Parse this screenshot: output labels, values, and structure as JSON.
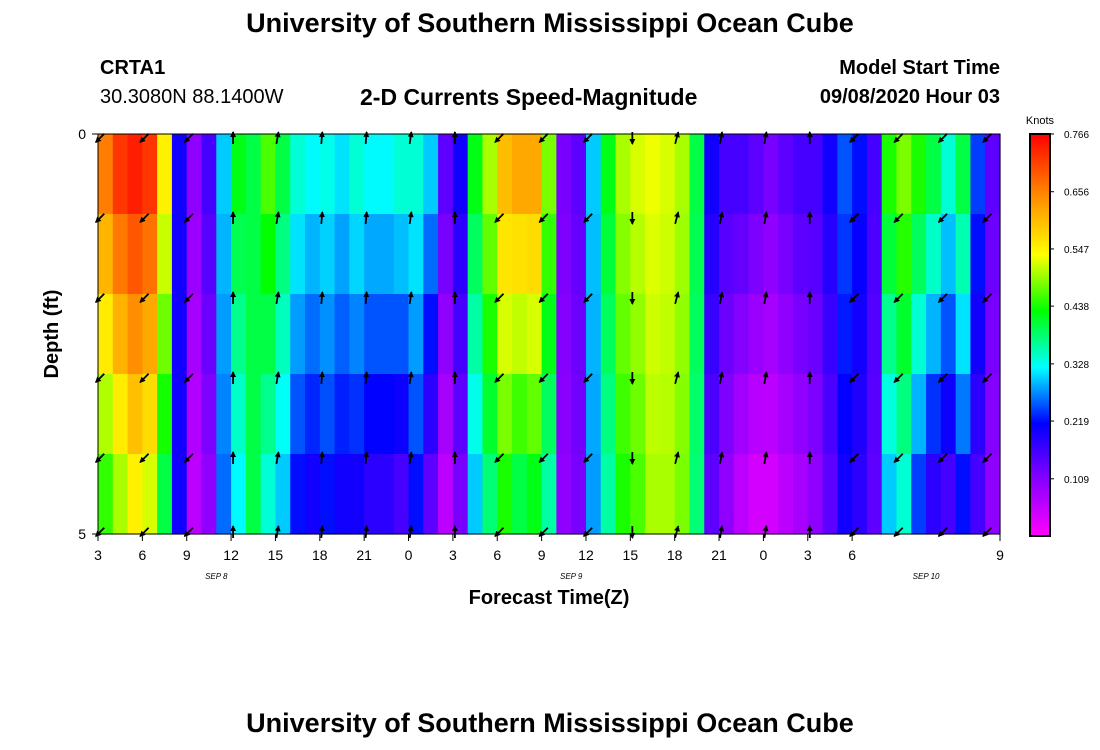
{
  "header": {
    "title": "University of Southern Mississippi Ocean Cube",
    "station": "CRTA1",
    "coords": "30.3080N 88.1400W",
    "plot_title": "2-D Currents Speed-Magnitude",
    "model_start_label": "Model Start Time",
    "model_start_value": "09/08/2020 Hour 03"
  },
  "footer": {
    "title": "University of Southern Mississippi Ocean Cube"
  },
  "chart_data": {
    "type": "heatmap",
    "title": "2-D Currents Speed-Magnitude",
    "xlabel": "Forecast Time(Z)",
    "ylabel": "Depth (ft)",
    "units": "Knots",
    "ylim": [
      0,
      5
    ],
    "y_ticks": [
      "0",
      "5"
    ],
    "x_ticks": [
      "3",
      "6",
      "9",
      "12",
      "15",
      "18",
      "21",
      "0",
      "3",
      "6",
      "9",
      "12",
      "15",
      "18",
      "21",
      "0",
      "3",
      "6",
      "9"
    ],
    "date_labels": [
      {
        "text": "SEP 8",
        "hour_offset": 9
      },
      {
        "text": "SEP 9",
        "hour_offset": 33
      },
      {
        "text": "SEP 10",
        "hour_offset": 57
      }
    ],
    "colorbar": {
      "label": "Knots",
      "min": 0.0,
      "max": 0.766,
      "ticks": [
        "0.766",
        "0.656",
        "0.547",
        "0.438",
        "0.328",
        "0.219",
        "0.109"
      ],
      "tick_values": [
        0.766,
        0.656,
        0.547,
        0.438,
        0.328,
        0.219,
        0.109
      ]
    },
    "depth_rows": 5,
    "hours": [
      3,
      4,
      5,
      6,
      7,
      8,
      9,
      10,
      11,
      12,
      13,
      14,
      15,
      16,
      17,
      18,
      19,
      20,
      21,
      22,
      23,
      24,
      25,
      26,
      27,
      28,
      29,
      30,
      31,
      32,
      33,
      34,
      35,
      36,
      37,
      38,
      39,
      40,
      41,
      42,
      43,
      44,
      45,
      46,
      47,
      48,
      49,
      50,
      51,
      52,
      53,
      54,
      55,
      56,
      57,
      58,
      59,
      60,
      61,
      62,
      63
    ],
    "surface_speed_knots": [
      0.66,
      0.72,
      0.74,
      0.72,
      0.55,
      0.2,
      0.1,
      0.16,
      0.3,
      0.42,
      0.4,
      0.46,
      0.4,
      0.34,
      0.32,
      0.33,
      0.31,
      0.34,
      0.32,
      0.32,
      0.34,
      0.34,
      0.3,
      0.14,
      0.2,
      0.42,
      0.5,
      0.6,
      0.62,
      0.62,
      0.48,
      0.12,
      0.14,
      0.3,
      0.42,
      0.5,
      0.52,
      0.53,
      0.52,
      0.5,
      0.4,
      0.2,
      0.16,
      0.16,
      0.14,
      0.12,
      0.14,
      0.16,
      0.16,
      0.2,
      0.25,
      0.22,
      0.16,
      0.44,
      0.48,
      0.44,
      0.4,
      0.34,
      0.4,
      0.24,
      0.14
    ],
    "bottom_speed_knots": [
      0.45,
      0.5,
      0.55,
      0.52,
      0.4,
      0.2,
      0.06,
      0.1,
      0.26,
      0.32,
      0.4,
      0.34,
      0.3,
      0.22,
      0.2,
      0.22,
      0.2,
      0.2,
      0.18,
      0.18,
      0.16,
      0.22,
      0.14,
      0.06,
      0.12,
      0.3,
      0.38,
      0.44,
      0.4,
      0.42,
      0.36,
      0.1,
      0.12,
      0.28,
      0.36,
      0.44,
      0.46,
      0.5,
      0.5,
      0.48,
      0.38,
      0.14,
      0.1,
      0.06,
      0.04,
      0.04,
      0.06,
      0.08,
      0.1,
      0.14,
      0.2,
      0.18,
      0.14,
      0.3,
      0.34,
      0.24,
      0.18,
      0.16,
      0.22,
      0.16,
      0.1
    ],
    "vector_rows": [
      0,
      1,
      2,
      3,
      4,
      5
    ],
    "vector_hours": [
      3,
      6,
      9,
      12,
      15,
      18,
      21,
      24,
      27,
      30,
      33,
      36,
      39,
      42,
      45,
      48,
      51,
      54,
      57,
      60,
      63
    ],
    "vector_directions_deg": [
      135,
      135,
      135,
      270,
      280,
      275,
      275,
      278,
      270,
      135,
      135,
      135,
      90,
      285,
      280,
      280,
      270,
      135,
      135,
      135,
      135
    ]
  }
}
